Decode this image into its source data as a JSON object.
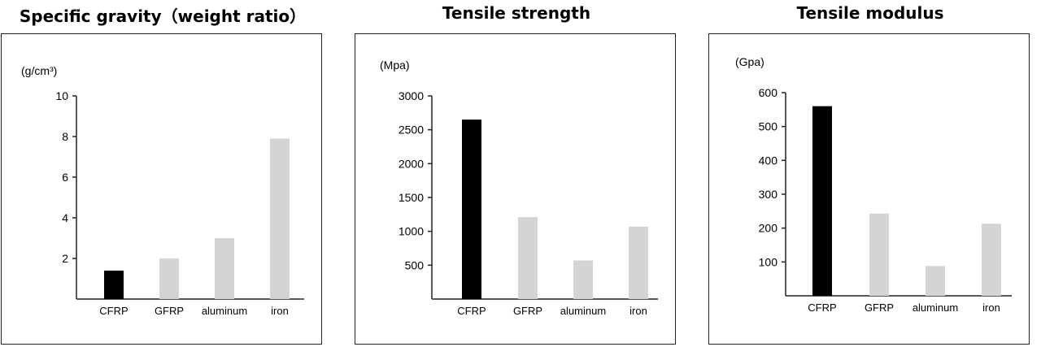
{
  "colors": {
    "highlight": "#000000",
    "bar": "#d4d4d4",
    "axis": "#222222"
  },
  "chart_data": [
    {
      "type": "bar",
      "title": "Specific gravity（weight ratio）",
      "unit": "(g/cm³)",
      "categories": [
        "CFRP",
        "GFRP",
        "aluminum",
        "iron"
      ],
      "values": [
        1.4,
        2.0,
        3.0,
        7.9
      ],
      "yticks": [
        2,
        4,
        6,
        8,
        10
      ],
      "ylim": [
        0,
        10
      ],
      "highlight_index": 0
    },
    {
      "type": "bar",
      "title": "Tensile strength",
      "unit": "(Mpa)",
      "categories": [
        "CFRP",
        "GFRP",
        "aluminum",
        "iron"
      ],
      "values": [
        2650,
        1210,
        570,
        1070
      ],
      "yticks": [
        500,
        1000,
        1500,
        2000,
        2500,
        3000
      ],
      "ylim": [
        0,
        3000
      ],
      "highlight_index": 0
    },
    {
      "type": "bar",
      "title": "Tensile modulus",
      "unit": "(Gpa)",
      "categories": [
        "CFRP",
        "GFRP",
        "aluminum",
        "iron"
      ],
      "values": [
        560,
        243,
        88,
        213
      ],
      "yticks": [
        100,
        200,
        300,
        400,
        500,
        600
      ],
      "ylim": [
        0,
        600
      ],
      "highlight_index": 0
    }
  ]
}
